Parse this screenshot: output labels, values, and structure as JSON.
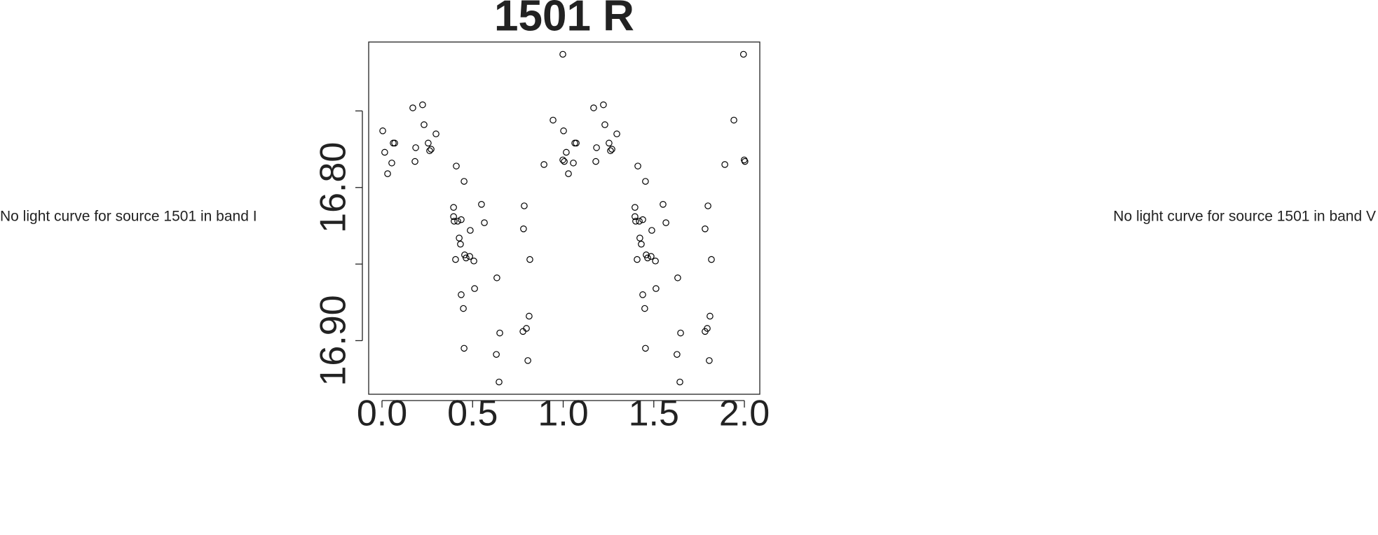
{
  "chart_data": {
    "type": "scatter",
    "title": "1501 R",
    "annotations": [
      "No light curve for source 1501 in band I",
      "No light curve for source 1501 in band V"
    ],
    "color": "#000000",
    "xlim": [
      -0.0735,
      2.085
    ],
    "ylim": [
      16.935,
      16.705
    ],
    "xticks": [
      {
        "value": 0,
        "label": "0.0"
      },
      {
        "value": 0.5,
        "label": "0.5"
      },
      {
        "value": 1,
        "label": "1.0"
      },
      {
        "value": 1.5,
        "label": "1.5"
      },
      {
        "value": 2,
        "label": "2.0"
      }
    ],
    "yticks": [
      {
        "value": 16.8,
        "label": "16.80"
      },
      {
        "value": 16.9,
        "label": "16.90"
      }
    ],
    "yminor_ticks": [
      16.75,
      16.85
    ],
    "x": [
      0.004,
      0.015,
      0.031,
      0.054,
      0.062,
      0.07,
      0.17,
      0.182,
      0.186,
      0.224,
      0.232,
      0.255,
      0.263,
      0.271,
      0.298,
      0.41,
      0.395,
      0.395,
      0.398,
      0.418,
      0.437,
      0.453,
      0.426,
      0.433,
      0.406,
      0.456,
      0.464,
      0.484,
      0.507,
      0.487,
      0.549,
      0.565,
      0.437,
      0.449,
      0.511,
      0.453,
      0.634,
      0.65,
      0.631,
      0.646,
      0.785,
      0.781,
      0.816,
      0.778,
      0.797,
      0.812,
      0.805,
      0.894,
      0.998,
      0.944,
      1.002,
      0.998,
      1.006,
      1.017,
      1.029,
      1.056,
      1.064,
      1.072,
      1.168,
      1.18,
      1.184,
      1.222,
      1.23,
      1.253,
      1.261,
      1.269,
      1.296,
      1.412,
      1.396,
      1.396,
      1.4,
      1.42,
      1.439,
      1.454,
      1.423,
      1.431,
      1.408,
      1.458,
      1.466,
      1.485,
      1.509,
      1.489,
      1.551,
      1.567,
      1.439,
      1.45,
      1.512,
      1.454,
      1.632,
      1.648,
      1.628,
      1.644,
      1.799,
      1.783,
      1.818,
      1.783,
      1.795,
      1.81,
      1.806,
      1.892,
      1.995,
      1.942,
      1.999,
      2.003
    ],
    "values": [
      16.763,
      16.777,
      16.791,
      16.784,
      16.771,
      16.771,
      16.748,
      16.783,
      16.774,
      16.746,
      16.759,
      16.771,
      16.776,
      16.775,
      16.765,
      16.786,
      16.813,
      16.819,
      16.822,
      16.822,
      16.821,
      16.796,
      16.833,
      16.837,
      16.847,
      16.844,
      16.846,
      16.845,
      16.848,
      16.828,
      16.811,
      16.823,
      16.87,
      16.879,
      16.866,
      16.905,
      16.859,
      16.895,
      16.909,
      16.927,
      16.812,
      16.827,
      16.847,
      16.894,
      16.892,
      16.884,
      16.913,
      16.785,
      16.713,
      16.756,
      16.763,
      16.782,
      16.783,
      16.777,
      16.791,
      16.784,
      16.771,
      16.771,
      16.748,
      16.783,
      16.774,
      16.746,
      16.759,
      16.771,
      16.776,
      16.775,
      16.765,
      16.786,
      16.813,
      16.819,
      16.822,
      16.822,
      16.821,
      16.796,
      16.833,
      16.837,
      16.847,
      16.844,
      16.846,
      16.845,
      16.848,
      16.828,
      16.811,
      16.823,
      16.87,
      16.879,
      16.866,
      16.905,
      16.859,
      16.895,
      16.909,
      16.927,
      16.812,
      16.827,
      16.847,
      16.894,
      16.892,
      16.884,
      16.913,
      16.785,
      16.713,
      16.756,
      16.782,
      16.783
    ]
  }
}
